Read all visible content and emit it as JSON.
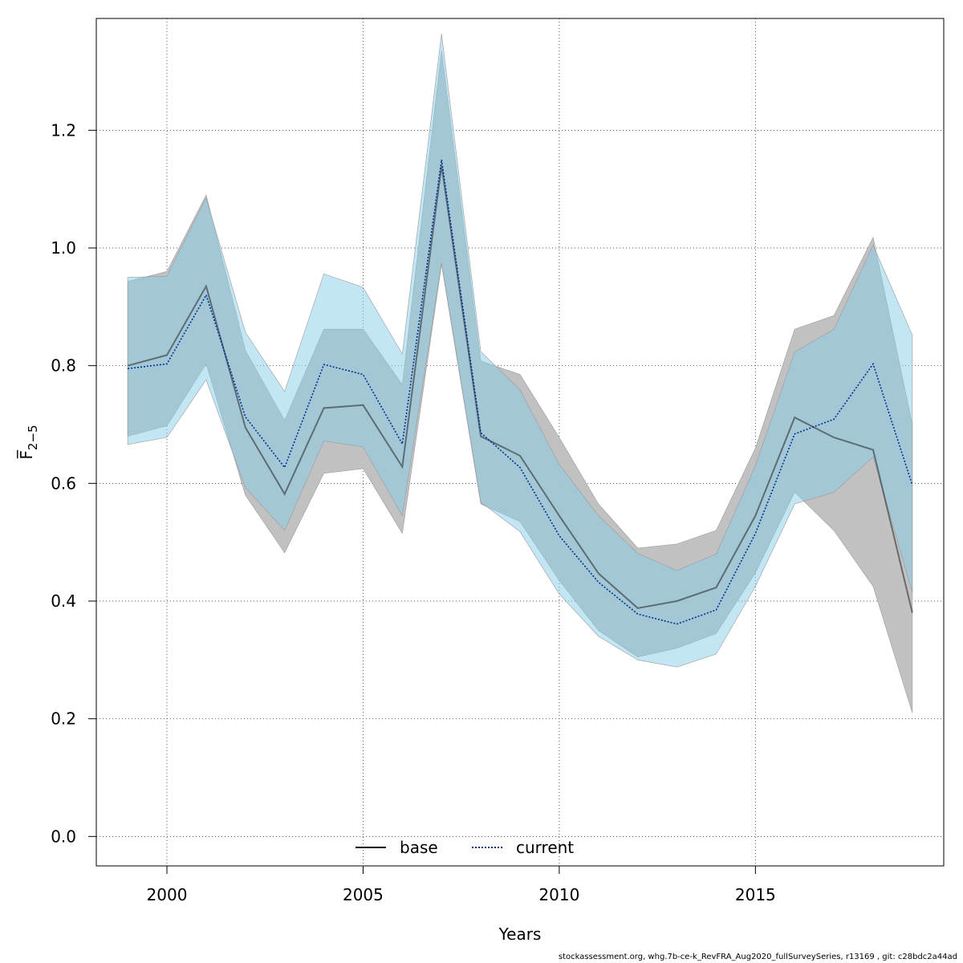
{
  "chart_data": {
    "type": "line",
    "xlabel": "Years",
    "ylabel": "F̅",
    "ylabel_subscript": "2−5",
    "xlim": [
      1998.2,
      2019.8
    ],
    "ylim": [
      -0.05,
      1.39
    ],
    "xticks": [
      2000,
      2005,
      2010,
      2015
    ],
    "yticks": [
      0.0,
      0.2,
      0.4,
      0.6,
      0.8,
      1.0,
      1.2
    ],
    "ytick_labels": [
      "0.0",
      "0.2",
      "0.4",
      "0.6",
      "0.8",
      "1.0",
      "1.2"
    ],
    "grid": true,
    "legend_position": "bottom",
    "x": [
      1999,
      2000,
      2001,
      2002,
      2003,
      2004,
      2005,
      2006,
      2007,
      2008,
      2009,
      2010,
      2011,
      2012,
      2013,
      2014,
      2015,
      2016,
      2017,
      2018,
      2019
    ],
    "series": [
      {
        "name": "base",
        "color": "#000000",
        "band_color": "#bebebe",
        "linestyle": "solid",
        "values": [
          0.8,
          0.818,
          0.935,
          0.695,
          0.582,
          0.728,
          0.733,
          0.628,
          1.14,
          0.68,
          0.647,
          0.545,
          0.447,
          0.388,
          0.4,
          0.423,
          0.545,
          0.712,
          0.678,
          0.657,
          0.38
        ],
        "lower": [
          0.68,
          0.698,
          0.803,
          0.58,
          0.482,
          0.617,
          0.625,
          0.515,
          0.972,
          0.565,
          0.535,
          0.435,
          0.35,
          0.305,
          0.32,
          0.345,
          0.448,
          0.585,
          0.52,
          0.425,
          0.21
        ],
        "upper": [
          0.943,
          0.96,
          1.09,
          0.826,
          0.707,
          0.862,
          0.862,
          0.768,
          1.335,
          0.808,
          0.785,
          0.678,
          0.565,
          0.49,
          0.497,
          0.52,
          0.66,
          0.862,
          0.885,
          1.018,
          0.7
        ]
      },
      {
        "name": "current",
        "color": "#00308f",
        "band_color": "#87ceeb",
        "linestyle": "dotted",
        "values": [
          0.795,
          0.803,
          0.92,
          0.713,
          0.627,
          0.802,
          0.785,
          0.667,
          1.15,
          0.686,
          0.627,
          0.511,
          0.432,
          0.378,
          0.361,
          0.385,
          0.515,
          0.684,
          0.709,
          0.803,
          0.597
        ],
        "lower": [
          0.666,
          0.678,
          0.776,
          0.593,
          0.52,
          0.672,
          0.662,
          0.545,
          0.975,
          0.568,
          0.518,
          0.412,
          0.34,
          0.3,
          0.288,
          0.31,
          0.425,
          0.565,
          0.585,
          0.645,
          0.415
        ],
        "upper": [
          0.95,
          0.952,
          1.085,
          0.857,
          0.756,
          0.956,
          0.933,
          0.82,
          1.364,
          0.824,
          0.759,
          0.632,
          0.545,
          0.481,
          0.452,
          0.48,
          0.63,
          0.823,
          0.862,
          1.005,
          0.852
        ]
      }
    ]
  },
  "footer_text": "stockassessment.org, whg.7b-ce-k_RevFRA_Aug2020_fullSurveySeries, r13169 , git: c28bdc2a44ad"
}
